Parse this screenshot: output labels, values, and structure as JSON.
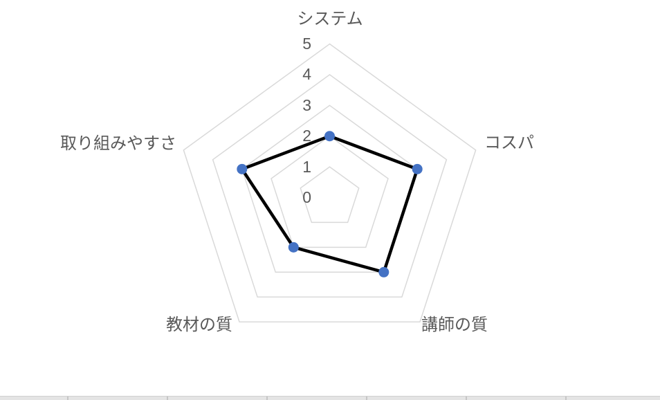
{
  "chart_data": {
    "type": "radar",
    "title": "",
    "categories": [
      "システム",
      "コスパ",
      "講師の質",
      "教材の質",
      "取り組みやすさ"
    ],
    "series": [
      {
        "values": [
          2,
          3,
          3,
          2,
          3
        ]
      }
    ],
    "tick_labels": [
      "0",
      "1",
      "2",
      "3",
      "4",
      "5"
    ],
    "rmin": 0,
    "rmax": 5,
    "grid": "concentric-pentagon-rings",
    "radial_spokes": false,
    "legend": "none",
    "marker_shape": "circle",
    "colors": {
      "line": "#000000",
      "marker": "#4472C4",
      "gridline": "#D9D9D9",
      "label_text": "#595959"
    }
  }
}
